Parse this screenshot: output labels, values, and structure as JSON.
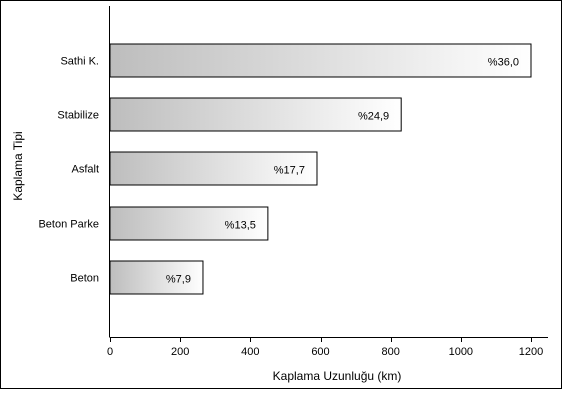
{
  "chart_data": {
    "type": "bar",
    "orientation": "horizontal",
    "categories": [
      "Sathi K.",
      "Stabilize",
      "Asfalt",
      "Beton Parke",
      "Beton"
    ],
    "values": [
      1200,
      830,
      590,
      450,
      265
    ],
    "data_labels": [
      "%36,0",
      "%24,9",
      "%17,7",
      "%13,5",
      "%7,9"
    ],
    "xlabel": "Kaplama Uzunluğu (km)",
    "ylabel": "Kaplama Tipi",
    "xlim": [
      0,
      1300
    ],
    "xticks": [
      0,
      200,
      400,
      600,
      800,
      1000,
      1200
    ],
    "grid": false,
    "legend": "none",
    "bar_fill_from": "#bdbdbd",
    "bar_fill_to": "#ffffff",
    "bar_stroke": "#000000"
  }
}
